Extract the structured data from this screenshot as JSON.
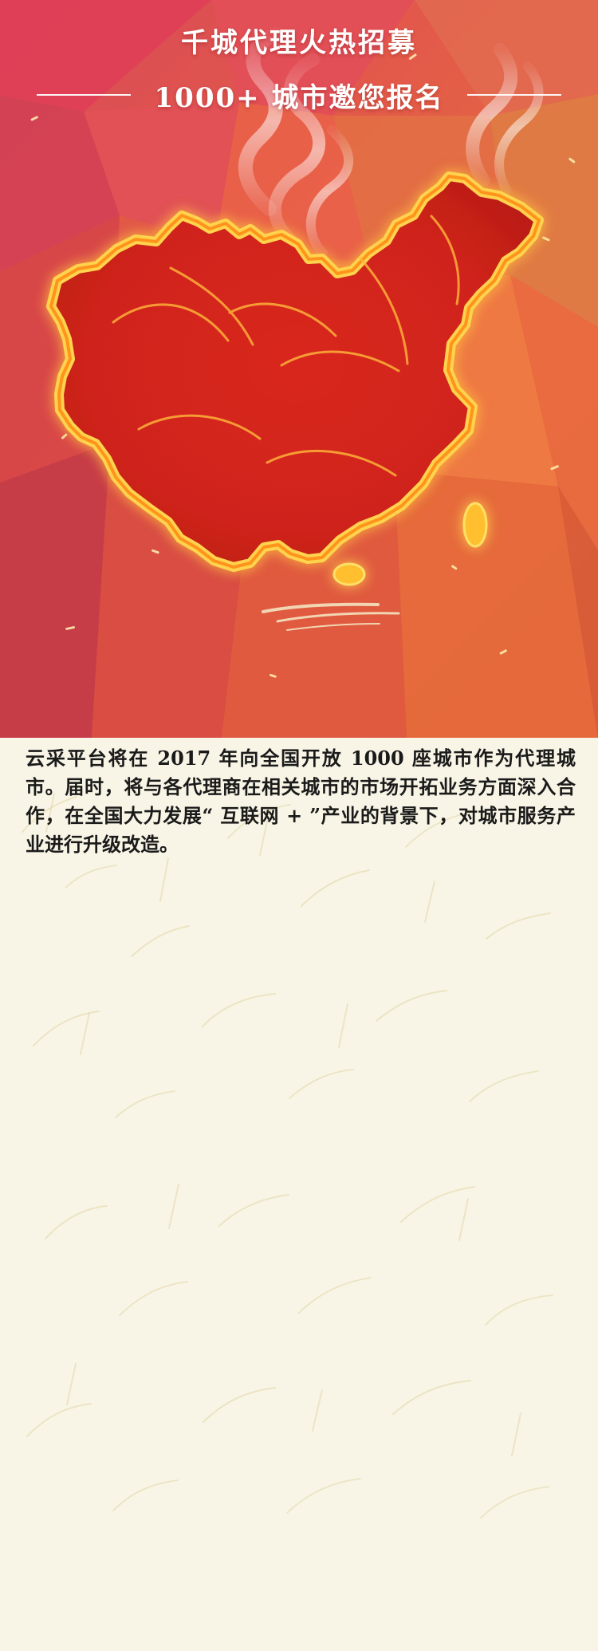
{
  "hero": {
    "title": "千城代理火热招募",
    "subtitle": "1000+ 城市邀您报名"
  },
  "intro": {
    "paragraph": "云采平台将在 2017 年向全国开放 1000 座城市作为代理城市。届时，将与各代理商在相关城市的市场开拓业务方面深入合作，在全国大力发展“ 互联网 + ”产业的背景下，对城市服务产业进行升级改造。"
  },
  "colors": {
    "hero_red": "#d74758",
    "hero_orange": "#e46c3a",
    "map_red": "#d42a1e",
    "flame_yellow": "#ffcc33",
    "paper": "#f8f5e6",
    "text": "#1a1a1a"
  }
}
